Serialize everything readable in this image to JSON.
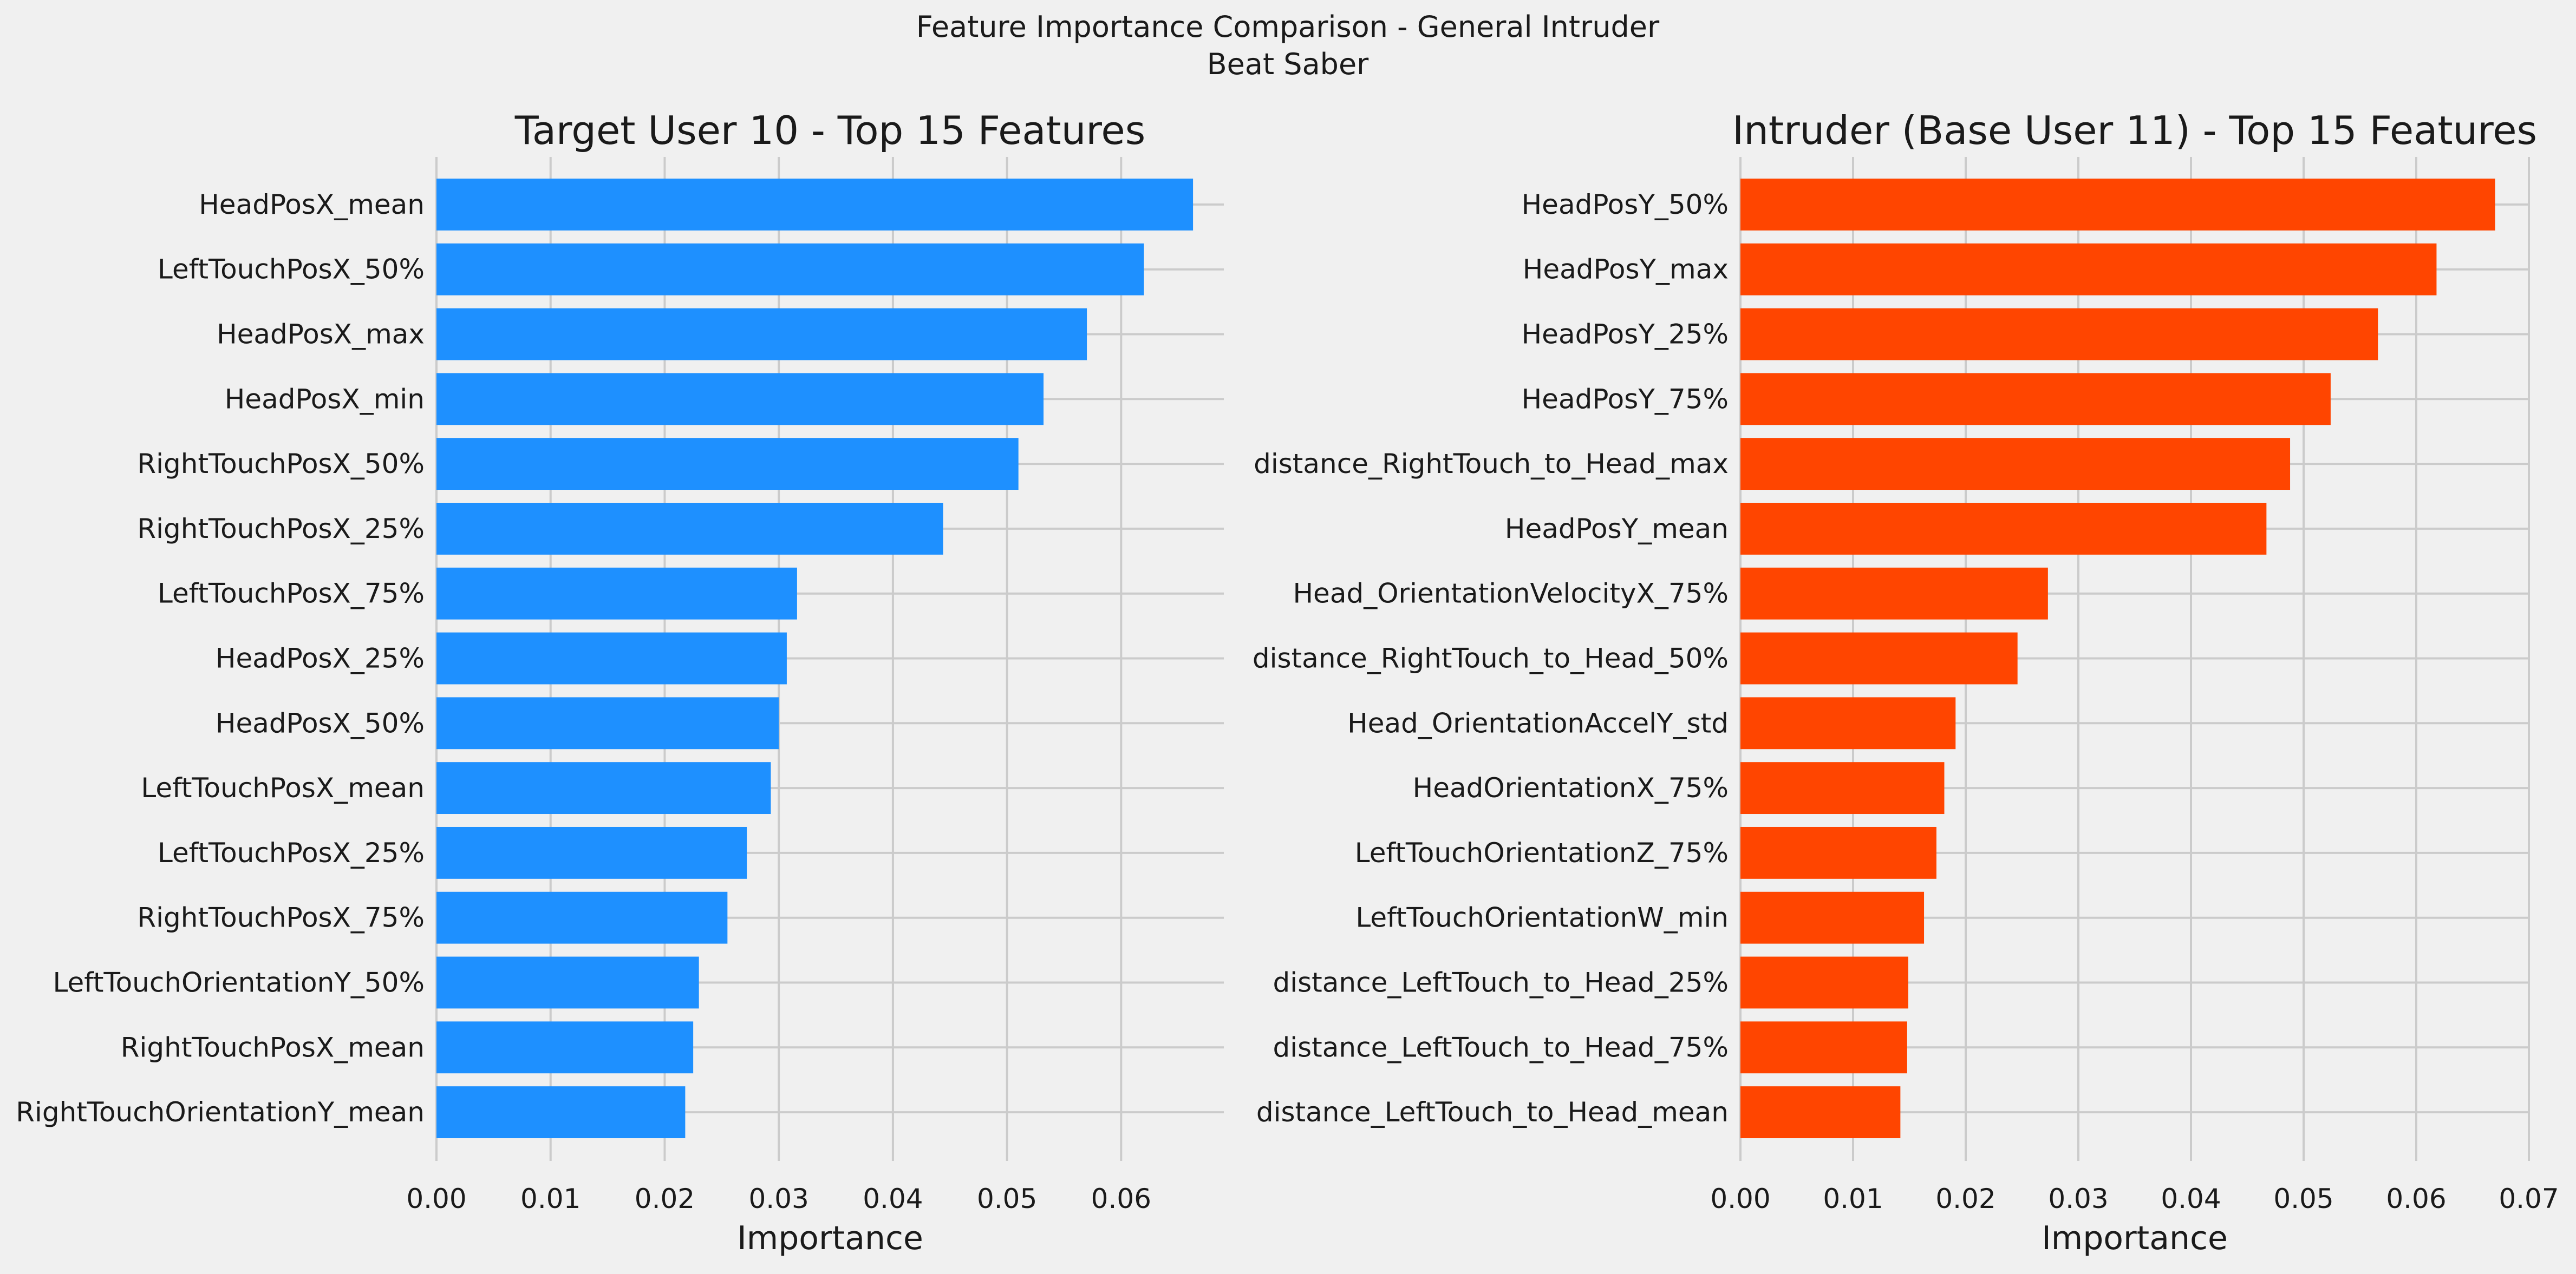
{
  "figure": {
    "title_line1": "Feature Importance Comparison - General Intruder",
    "title_line2": "Beat Saber",
    "background": "#f0f0f0",
    "grid_color": "#cbcbcb"
  },
  "chart_data": [
    {
      "type": "bar",
      "orientation": "horizontal",
      "title": "Target User 10 - Top 15 Features",
      "xlabel": "Importance",
      "ylabel": "",
      "xlim": [
        0,
        0.069
      ],
      "xticks": [
        0.0,
        0.01,
        0.02,
        0.03,
        0.04,
        0.05,
        0.06
      ],
      "tick_labels": [
        "0.00",
        "0.01",
        "0.02",
        "0.03",
        "0.04",
        "0.05",
        "0.06"
      ],
      "grid": true,
      "color": "#1e90ff",
      "categories": [
        "HeadPosX_mean",
        "LeftTouchPosX_50%",
        "HeadPosX_max",
        "HeadPosX_min",
        "RightTouchPosX_50%",
        "RightTouchPosX_25%",
        "LeftTouchPosX_75%",
        "HeadPosX_25%",
        "HeadPosX_50%",
        "LeftTouchPosX_mean",
        "LeftTouchPosX_25%",
        "RightTouchPosX_75%",
        "LeftTouchOrientationY_50%",
        "RightTouchPosX_mean",
        "RightTouchOrientationY_mean"
      ],
      "values": [
        0.0663,
        0.062,
        0.057,
        0.0532,
        0.051,
        0.0444,
        0.0316,
        0.0307,
        0.03,
        0.0293,
        0.0272,
        0.0255,
        0.023,
        0.0225,
        0.0218
      ]
    },
    {
      "type": "bar",
      "orientation": "horizontal",
      "title": "Intruder (Base User 11) - Top 15 Features",
      "xlabel": "Importance",
      "ylabel": "",
      "xlim": [
        0,
        0.07
      ],
      "xticks": [
        0.0,
        0.01,
        0.02,
        0.03,
        0.04,
        0.05,
        0.06,
        0.07
      ],
      "tick_labels": [
        "0.00",
        "0.01",
        "0.02",
        "0.03",
        "0.04",
        "0.05",
        "0.06",
        "0.07"
      ],
      "grid": true,
      "color": "#ff4500",
      "categories": [
        "HeadPosY_50%",
        "HeadPosY_max",
        "HeadPosY_25%",
        "HeadPosY_75%",
        "distance_RightTouch_to_Head_max",
        "HeadPosY_mean",
        "Head_OrientationVelocityX_75%",
        "distance_RightTouch_to_Head_50%",
        "Head_OrientationAccelY_std",
        "HeadOrientationX_75%",
        "LeftTouchOrientationZ_75%",
        "LeftTouchOrientationW_min",
        "distance_LeftTouch_to_Head_25%",
        "distance_LeftTouch_to_Head_75%",
        "distance_LeftTouch_to_Head_mean"
      ],
      "values": [
        0.067,
        0.0618,
        0.0566,
        0.0524,
        0.0488,
        0.0467,
        0.0273,
        0.0246,
        0.0191,
        0.0181,
        0.0174,
        0.0163,
        0.0149,
        0.0148,
        0.0142
      ]
    }
  ]
}
